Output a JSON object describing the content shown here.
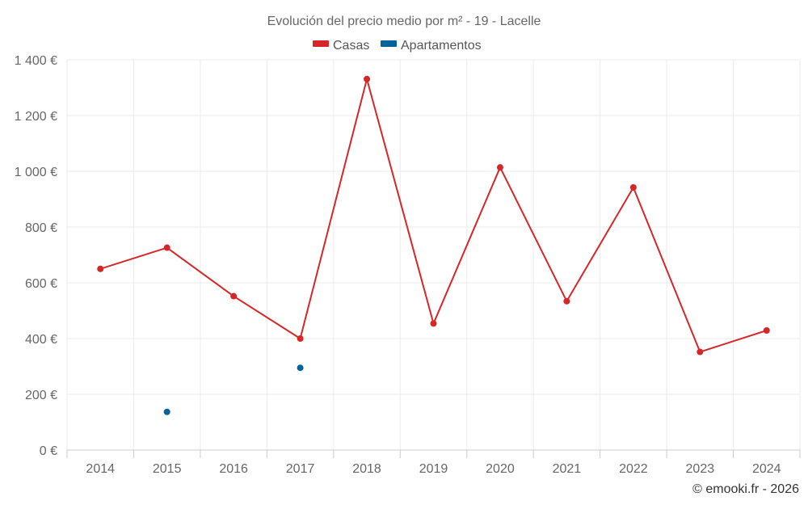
{
  "chart_data": {
    "type": "line",
    "title": "Evolución del precio medio por m² - 19 - Lacelle",
    "categories": [
      "2014",
      "2015",
      "2016",
      "2017",
      "2018",
      "2019",
      "2020",
      "2021",
      "2022",
      "2023",
      "2024"
    ],
    "series": [
      {
        "name": "Casas",
        "color": "#d62728",
        "values": [
          650,
          726,
          552,
          400,
          1331,
          454,
          1014,
          534,
          942,
          352,
          429
        ]
      },
      {
        "name": "Apartamentos",
        "color": "#03639b",
        "values": [
          null,
          137,
          null,
          295,
          null,
          null,
          null,
          null,
          null,
          null,
          null
        ]
      }
    ],
    "ylim": [
      0,
      1400
    ],
    "yticks": [
      0,
      200,
      400,
      600,
      800,
      1000,
      1200,
      1400
    ],
    "ytick_labels": [
      "0 €",
      "200 €",
      "400 €",
      "600 €",
      "800 €",
      "1 000 €",
      "1 200 €",
      "1 400 €"
    ],
    "xlabel": "",
    "ylabel": "",
    "grid": true,
    "legend_position": "top-center"
  },
  "credit": "© emooki.fr - 2026"
}
